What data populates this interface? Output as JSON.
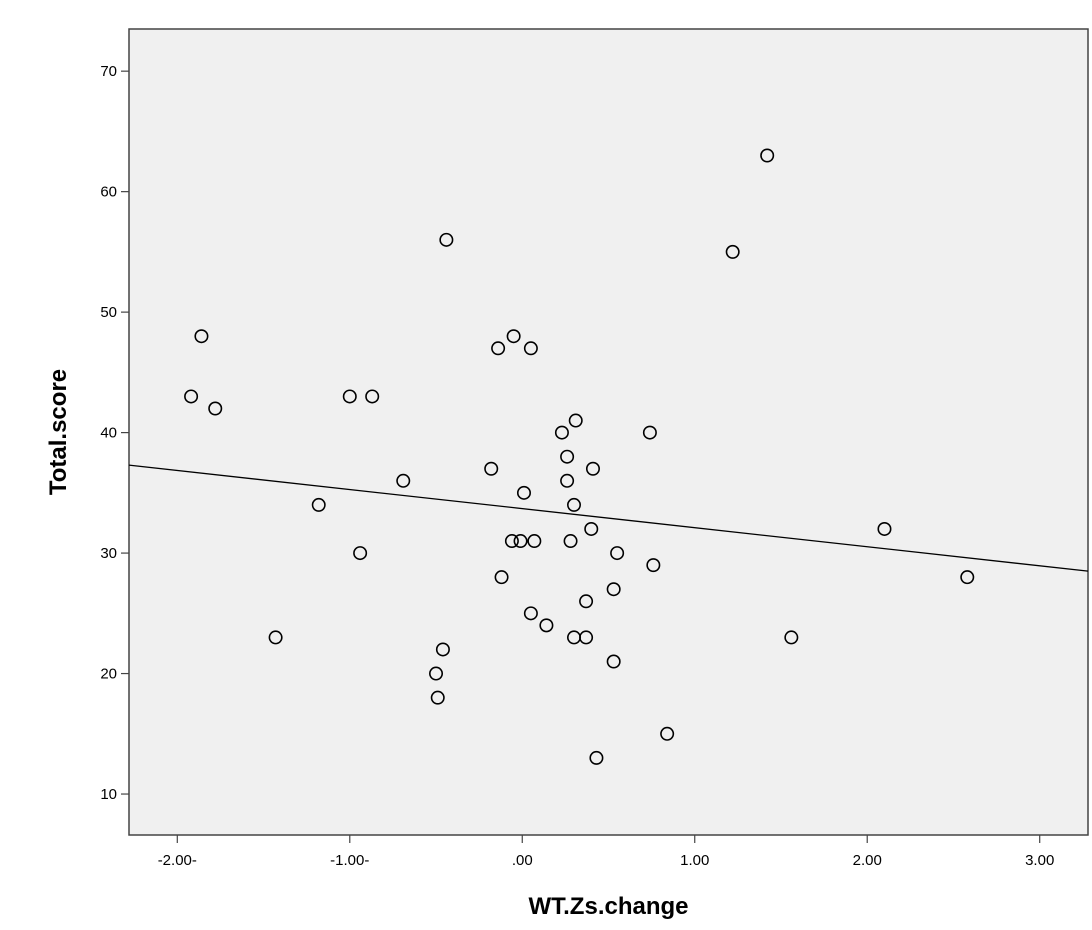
{
  "chart_data": {
    "type": "scatter",
    "title": "",
    "xlabel": "WT.Zs.change",
    "ylabel": "Total.score",
    "xlim": [
      -2.28,
      3.28
    ],
    "ylim": [
      6.6,
      73.5
    ],
    "x_ticks": [
      -2,
      -1,
      0,
      1,
      2,
      3
    ],
    "x_tick_labels": [
      "-2.00-",
      "-1.00-",
      ".00",
      "1.00",
      "2.00",
      "3.00"
    ],
    "y_ticks": [
      10,
      20,
      30,
      40,
      50,
      60,
      70
    ],
    "y_tick_labels": [
      "10",
      "20",
      "30",
      "40",
      "50",
      "60",
      "70"
    ],
    "grid": false,
    "fit_line": {
      "x": [
        -2.28,
        3.28
      ],
      "y": [
        37.3,
        28.5
      ]
    },
    "points": [
      {
        "x": -1.92,
        "y": 43
      },
      {
        "x": -1.86,
        "y": 48
      },
      {
        "x": -1.78,
        "y": 42
      },
      {
        "x": -1.43,
        "y": 23
      },
      {
        "x": -1.18,
        "y": 34
      },
      {
        "x": -1.0,
        "y": 43
      },
      {
        "x": -0.94,
        "y": 30
      },
      {
        "x": -0.87,
        "y": 43
      },
      {
        "x": -0.69,
        "y": 36
      },
      {
        "x": -0.5,
        "y": 20
      },
      {
        "x": -0.49,
        "y": 18
      },
      {
        "x": -0.46,
        "y": 22
      },
      {
        "x": -0.44,
        "y": 56
      },
      {
        "x": -0.18,
        "y": 37
      },
      {
        "x": -0.14,
        "y": 47
      },
      {
        "x": -0.12,
        "y": 28
      },
      {
        "x": -0.05,
        "y": 48
      },
      {
        "x": -0.06,
        "y": 31
      },
      {
        "x": -0.01,
        "y": 31
      },
      {
        "x": 0.01,
        "y": 35
      },
      {
        "x": 0.05,
        "y": 47
      },
      {
        "x": 0.05,
        "y": 25
      },
      {
        "x": 0.07,
        "y": 31
      },
      {
        "x": 0.14,
        "y": 24
      },
      {
        "x": 0.23,
        "y": 40
      },
      {
        "x": 0.26,
        "y": 38
      },
      {
        "x": 0.26,
        "y": 36
      },
      {
        "x": 0.28,
        "y": 31
      },
      {
        "x": 0.3,
        "y": 34
      },
      {
        "x": 0.31,
        "y": 41
      },
      {
        "x": 0.3,
        "y": 23
      },
      {
        "x": 0.37,
        "y": 26
      },
      {
        "x": 0.37,
        "y": 23
      },
      {
        "x": 0.4,
        "y": 32
      },
      {
        "x": 0.41,
        "y": 37
      },
      {
        "x": 0.43,
        "y": 13
      },
      {
        "x": 0.53,
        "y": 27
      },
      {
        "x": 0.53,
        "y": 21
      },
      {
        "x": 0.55,
        "y": 30
      },
      {
        "x": 0.74,
        "y": 40
      },
      {
        "x": 0.76,
        "y": 29
      },
      {
        "x": 0.84,
        "y": 15
      },
      {
        "x": 1.22,
        "y": 55
      },
      {
        "x": 1.42,
        "y": 63
      },
      {
        "x": 1.56,
        "y": 23
      },
      {
        "x": 2.1,
        "y": 32
      },
      {
        "x": 2.58,
        "y": 28
      }
    ]
  },
  "colors": {
    "plot_background": "#f0f0f0",
    "point_stroke": "#000000",
    "fit_line": "#000000",
    "axis": "#444444"
  }
}
